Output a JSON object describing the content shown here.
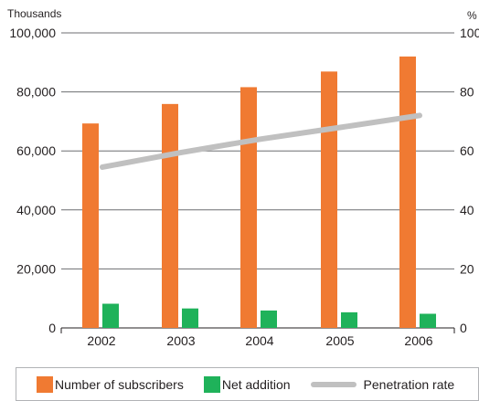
{
  "chart_data": {
    "type": "bar",
    "categories": [
      "2002",
      "2003",
      "2004",
      "2005",
      "2006"
    ],
    "series": [
      {
        "name": "Number of subscribers",
        "kind": "bar",
        "axis": "left",
        "color": "#f07a32",
        "values": [
          69300,
          75900,
          81600,
          86900,
          92000
        ]
      },
      {
        "name": "Net addition",
        "kind": "bar",
        "axis": "left",
        "color": "#1fb25a",
        "values": [
          8200,
          6600,
          5900,
          5300,
          4800
        ]
      },
      {
        "name": "Penetration rate",
        "kind": "line",
        "axis": "right",
        "color": "#c0c0c0",
        "values": [
          54.5,
          59.5,
          64.0,
          68.0,
          72.0
        ]
      }
    ],
    "y_left": {
      "unit_label": "Thousands",
      "ylim": [
        0,
        100000
      ],
      "tick_values": [
        0,
        20000,
        40000,
        60000,
        80000,
        100000
      ],
      "tick_labels": [
        "0",
        "20,000",
        "40,000",
        "60,000",
        "80,000",
        "100,000"
      ]
    },
    "y_right": {
      "unit_label": "%",
      "ylim": [
        0,
        100
      ],
      "tick_values": [
        0,
        20,
        40,
        60,
        80,
        100
      ],
      "tick_labels": [
        "0",
        "20",
        "40",
        "60",
        "80",
        "100"
      ]
    },
    "grid": true,
    "legend_position": "bottom"
  }
}
